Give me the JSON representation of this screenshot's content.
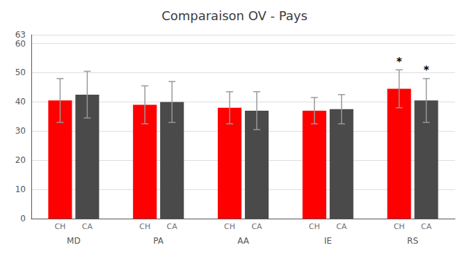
{
  "chart_data": {
    "type": "bar",
    "title": "Comparaison OV - Pays",
    "categories": [
      "MD",
      "PA",
      "AA",
      "IE",
      "RS"
    ],
    "series": [
      {
        "name": "CH",
        "color": "#ff0000",
        "values": [
          40.5,
          39.0,
          38.0,
          37.0,
          44.5
        ],
        "errors": [
          7.5,
          6.5,
          5.5,
          4.5,
          6.5
        ]
      },
      {
        "name": "CA",
        "color": "#4a4a4a",
        "values": [
          42.5,
          40.0,
          37.0,
          37.5,
          40.5
        ],
        "errors": [
          8.0,
          7.0,
          6.5,
          5.0,
          7.5
        ]
      }
    ],
    "ylim": [
      0,
      63
    ],
    "yticks": [
      0,
      10,
      20,
      30,
      40,
      50,
      60
    ],
    "grid": true,
    "legend": false,
    "annotations": [
      {
        "text": "*",
        "category": "RS",
        "series": "CH"
      },
      {
        "text": "*",
        "category": "RS",
        "series": "CA"
      }
    ]
  }
}
